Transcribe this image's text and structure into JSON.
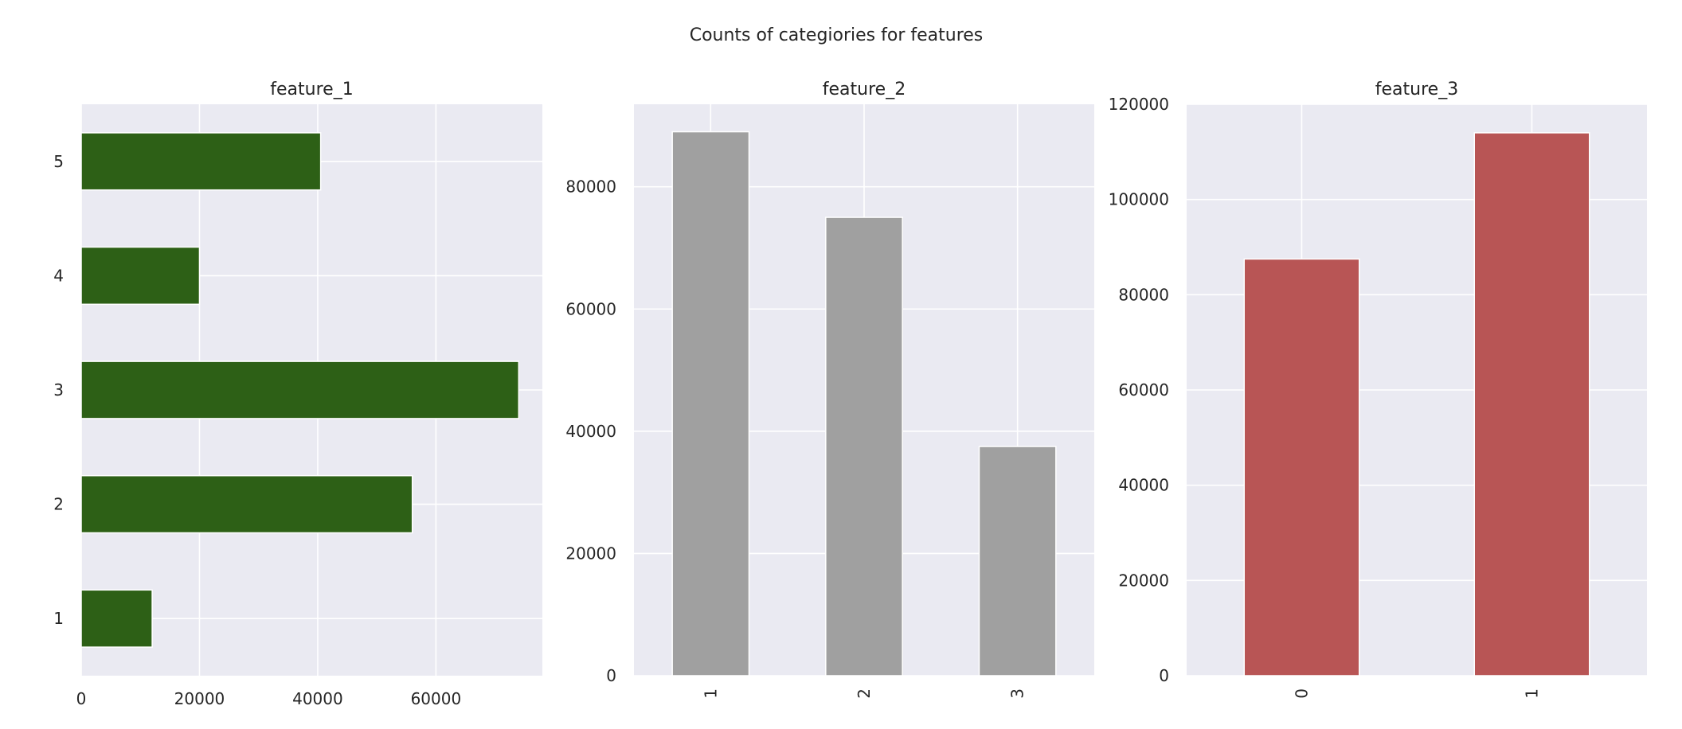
{
  "suptitle": "Counts of categiories for features",
  "chart_data": [
    {
      "type": "bar",
      "orientation": "horizontal",
      "title": "feature_1",
      "categories": [
        "1",
        "2",
        "3",
        "4",
        "5"
      ],
      "values": [
        12000,
        56000,
        74000,
        20000,
        40500
      ],
      "xlim": [
        0,
        78000
      ],
      "xticks": [
        0,
        20000,
        40000,
        60000
      ],
      "color": "#2d6016",
      "grid": true
    },
    {
      "type": "bar",
      "orientation": "vertical",
      "title": "feature_2",
      "categories": [
        "1",
        "2",
        "3"
      ],
      "values": [
        89000,
        75000,
        37500
      ],
      "ylim": [
        0,
        93500
      ],
      "yticks": [
        0,
        20000,
        40000,
        60000,
        80000
      ],
      "color": "#a0a0a0",
      "grid": true
    },
    {
      "type": "bar",
      "orientation": "vertical",
      "title": "feature_3",
      "categories": [
        "0",
        "1"
      ],
      "values": [
        87500,
        114000
      ],
      "ylim": [
        0,
        120000
      ],
      "yticks": [
        0,
        20000,
        40000,
        60000,
        80000,
        100000,
        120000
      ],
      "color": "#b85555",
      "grid": true
    }
  ]
}
